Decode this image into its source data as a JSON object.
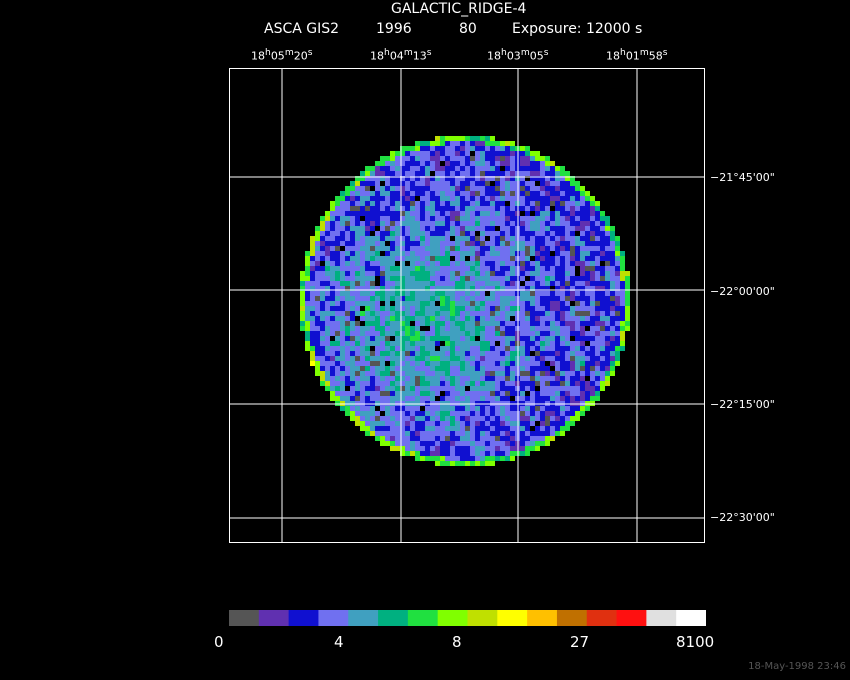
{
  "title": "GALACTIC_RIDGE-4",
  "subtitle": {
    "instrument": "ASCA GIS2",
    "year": "1996",
    "sequence": "80",
    "exposure": "Exposure: 12000 s"
  },
  "ra_labels": [
    {
      "h": "18",
      "m": "05",
      "s": "20"
    },
    {
      "h": "18",
      "m": "04",
      "s": "13"
    },
    {
      "h": "18",
      "m": "03",
      "s": "05"
    },
    {
      "h": "18",
      "m": "01",
      "s": "58"
    }
  ],
  "dec_labels": [
    "−21°45'00\"",
    "−22°00'00\"",
    "−22°15'00\"",
    "−22°30'00\""
  ],
  "colorbar": {
    "colors": [
      "#555555",
      "#6030b0",
      "#1010d0",
      "#7070f0",
      "#40a0c0",
      "#00b080",
      "#20e040",
      "#80ff00",
      "#c0e000",
      "#ffff00",
      "#ffc000",
      "#c07000",
      "#e03010",
      "#ff1010",
      "#e0e0e0",
      "#ffffff"
    ],
    "tick_labels": [
      "0",
      "4",
      "8",
      "27",
      "8100"
    ]
  },
  "footer_timestamp": "18-May-1998 23:46"
}
